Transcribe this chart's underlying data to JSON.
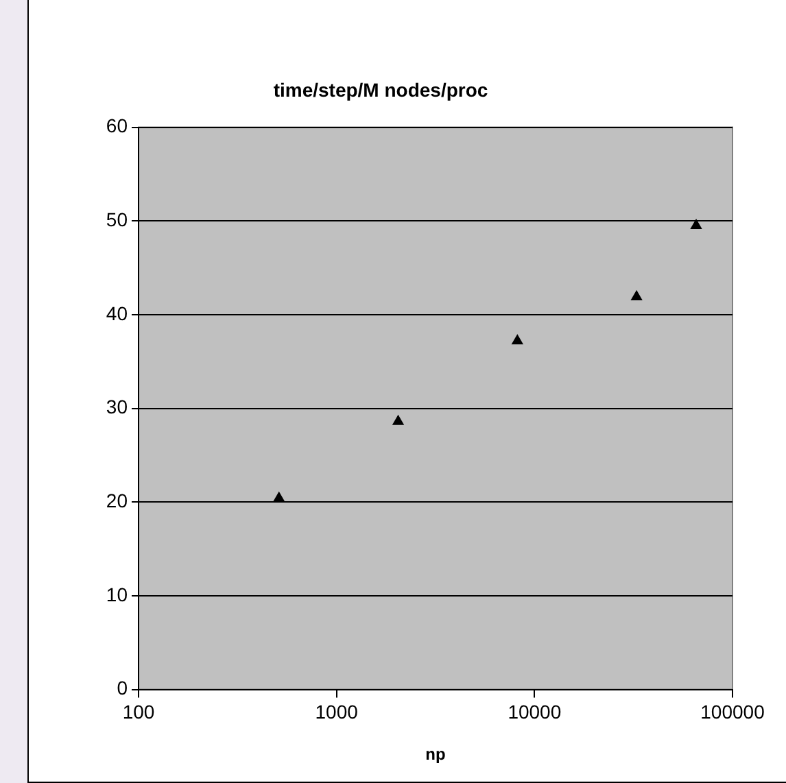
{
  "chart_data": {
    "type": "scatter",
    "title": "time/step/M nodes/proc",
    "xlabel": "np",
    "x": [
      512,
      2048,
      8192,
      32768,
      65536
    ],
    "series": [
      {
        "color": "#000000",
        "values": [
          20.4,
          28.6,
          37.2,
          41.9,
          49.5
        ]
      }
    ],
    "log": "x",
    "xlim": [
      100,
      100000
    ],
    "xticks": [
      100,
      1000,
      10000,
      100000
    ],
    "ylim": [
      0,
      60
    ],
    "yticks": [
      0,
      10,
      20,
      30,
      40,
      50,
      60
    ],
    "grid": "y",
    "legend": false,
    "marker": "triangle"
  }
}
